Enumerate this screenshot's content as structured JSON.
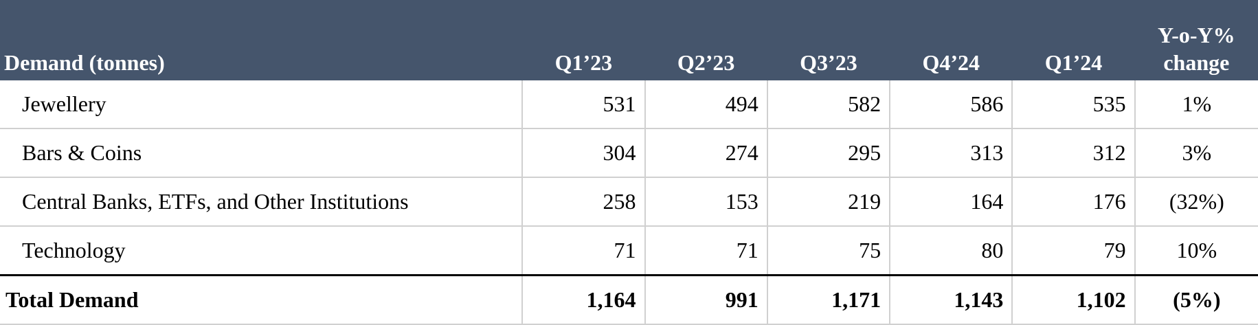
{
  "table": {
    "headers": [
      "Demand (tonnes)",
      "Q1’23",
      "Q2’23",
      "Q3’23",
      "Q4’24",
      "Q1’24",
      "Y-o-Y%",
      "change"
    ],
    "rows": [
      {
        "label": "Jewellery",
        "values": [
          "531",
          "494",
          "582",
          "586",
          "535"
        ],
        "change": "1%"
      },
      {
        "label": "Bars & Coins",
        "values": [
          "304",
          "274",
          "295",
          "313",
          "312"
        ],
        "change": "3%"
      },
      {
        "label": "Central Banks, ETFs, and Other Institutions",
        "values": [
          "258",
          "153",
          "219",
          "164",
          "176"
        ],
        "change": "(32%)"
      },
      {
        "label": "Technology",
        "values": [
          "71",
          "71",
          "75",
          "80",
          "79"
        ],
        "change": "10%"
      }
    ],
    "total": {
      "label": "Total Demand",
      "values": [
        "1,164",
        "991",
        "1,171",
        "1,143",
        "1,102"
      ],
      "change": "(5%)"
    }
  },
  "colors": {
    "header_bg": "#45556c",
    "header_text": "#ffffff",
    "grid": "#d0d0d0"
  }
}
